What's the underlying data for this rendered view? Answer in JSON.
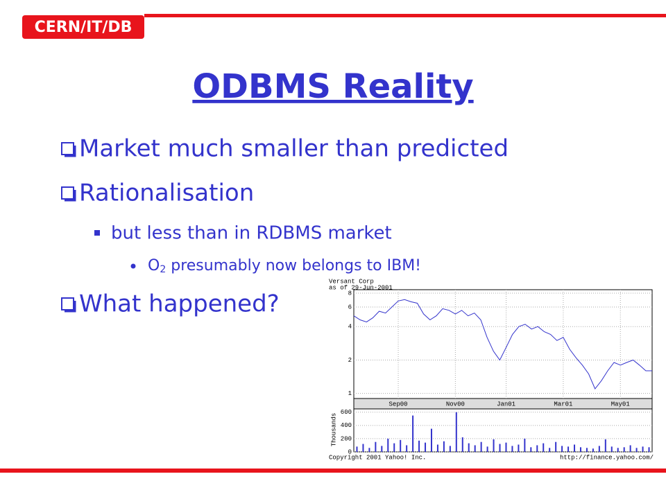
{
  "header": {
    "tag": "CERN/IT/DB",
    "title": "ODBMS Reality"
  },
  "bullets": [
    {
      "text": "Market much smaller than predicted"
    },
    {
      "text": "Rationalisation"
    },
    {
      "text": "but less than in RDBMS market"
    },
    {
      "parts": [
        "O",
        "2",
        " presumably now belongs to IBM!"
      ]
    },
    {
      "text": "What happened?"
    }
  ],
  "image": {
    "copyright": "Copyright 2001 Yahoo! Inc.",
    "url": "http://finance.yahoo.com/"
  },
  "chart_data": [
    {
      "type": "line",
      "title": "Versant Corp",
      "subtitle": "as of 29-Jun-2001",
      "color": "#3333cc",
      "log_scale": true,
      "grid": true,
      "categories": [
        null,
        null,
        null,
        null,
        null,
        null,
        null,
        "Sep00",
        null,
        null,
        null,
        null,
        null,
        null,
        null,
        null,
        "Nov00",
        null,
        null,
        null,
        null,
        null,
        null,
        null,
        "Jan01",
        null,
        null,
        null,
        null,
        null,
        null,
        null,
        null,
        "Mar01",
        null,
        null,
        null,
        null,
        null,
        null,
        null,
        null,
        "May01",
        null,
        null,
        null,
        null,
        null
      ],
      "values": [
        5.0,
        4.6,
        4.4,
        4.8,
        5.5,
        5.3,
        6.0,
        6.8,
        7.0,
        6.7,
        6.5,
        5.2,
        4.6,
        5.0,
        5.8,
        5.6,
        5.2,
        5.6,
        5.0,
        5.3,
        4.6,
        3.2,
        2.4,
        2.0,
        2.6,
        3.4,
        4.0,
        4.2,
        3.8,
        4.0,
        3.6,
        3.4,
        3.0,
        3.2,
        2.5,
        2.1,
        1.8,
        1.5,
        1.1,
        1.3,
        1.6,
        1.9,
        1.8,
        1.9,
        2.0,
        1.8,
        1.6,
        1.6
      ],
      "ylim": [
        0.9,
        8.6
      ],
      "yticks": [
        1,
        2,
        4,
        6,
        8
      ]
    },
    {
      "type": "bar",
      "y_label": "Thousands",
      "color": "#3333cc",
      "grid": true,
      "values": [
        80,
        120,
        60,
        150,
        90,
        200,
        130,
        180,
        100,
        550,
        170,
        140,
        350,
        110,
        160,
        90,
        600,
        220,
        130,
        100,
        150,
        80,
        190,
        120,
        140,
        90,
        110,
        200,
        70,
        100,
        130,
        60,
        150,
        90,
        80,
        110,
        70,
        60,
        50,
        90,
        190,
        80,
        60,
        70,
        100,
        60,
        80,
        70
      ],
      "ylim": [
        0,
        650
      ],
      "yticks": [
        0,
        200,
        400,
        600
      ]
    }
  ]
}
